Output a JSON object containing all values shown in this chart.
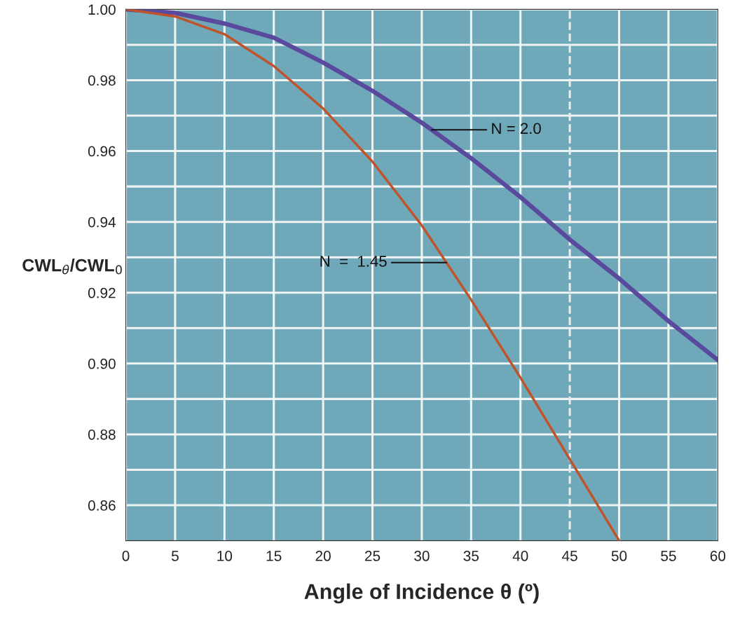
{
  "chart_data": {
    "type": "line",
    "xlabel": "Angle of Incidence θ (º)",
    "ylabel": "CWL$_{θ}$/CWL$_{0}$",
    "series": [
      {
        "color": "#5a4a9e",
        "x": [
          0,
          5,
          10,
          15,
          20,
          25,
          30,
          35,
          40,
          45,
          50,
          55,
          60
        ],
        "values": [
          1.0,
          0.999,
          0.996,
          0.992,
          0.985,
          0.977,
          0.968,
          0.958,
          0.947,
          0.935,
          0.924,
          0.912,
          0.901
        ]
      },
      {
        "color": "#c0532a",
        "x": [
          0,
          5,
          10,
          15,
          20,
          25,
          30,
          35,
          40,
          45,
          50
        ],
        "values": [
          1.0,
          0.998,
          0.993,
          0.984,
          0.972,
          0.957,
          0.939,
          0.918,
          0.896,
          0.873,
          0.85
        ]
      }
    ],
    "annotations": [
      {
        "text": "N = 2.0",
        "x": 31,
        "y": 0.966
      },
      {
        "text": "N  =  1.45",
        "x": 32.5,
        "y": 0.9285
      }
    ],
    "xlim": [
      0,
      60
    ],
    "xticks": [
      0,
      5,
      10,
      15,
      20,
      25,
      30,
      35,
      40,
      45,
      50,
      55,
      60
    ],
    "ylim": [
      0.85,
      1.0
    ],
    "yticks": [
      {
        "value": 0.86,
        "label": "0.86"
      },
      {
        "value": 0.87,
        "label": null
      },
      {
        "value": 0.88,
        "label": "0.88"
      },
      {
        "value": 0.89,
        "label": null
      },
      {
        "value": 0.9,
        "label": "0.90"
      },
      {
        "value": 0.91,
        "label": null
      },
      {
        "value": 0.92,
        "label": "0.92"
      },
      {
        "value": 0.93,
        "label": null
      },
      {
        "value": 0.94,
        "label": "0.94"
      },
      {
        "value": 0.95,
        "label": null
      },
      {
        "value": 0.96,
        "label": "0.96"
      },
      {
        "value": 0.97,
        "label": null
      },
      {
        "value": 0.98,
        "label": "0.98"
      },
      {
        "value": 0.99,
        "label": null
      },
      {
        "value": 1.0,
        "label": "1.00"
      }
    ],
    "ref_lines": [
      {
        "axis": "x",
        "value": 45,
        "color": "#e8eef0",
        "line_style": "dashed"
      }
    ],
    "grid": true,
    "legend": false,
    "marker": "none",
    "line_style": "solid"
  }
}
